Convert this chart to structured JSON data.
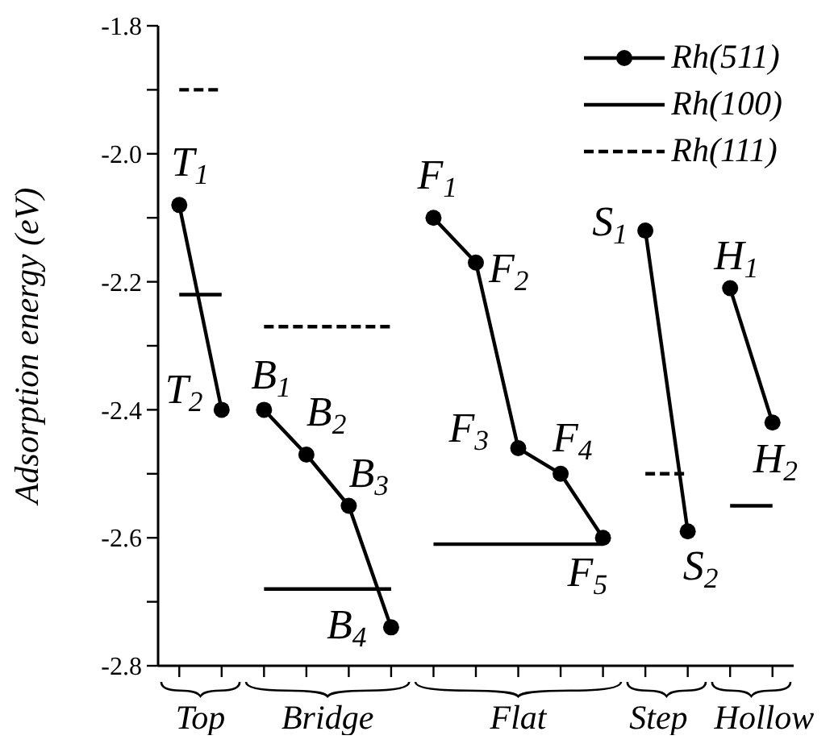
{
  "chart_data": {
    "type": "line",
    "ylabel": "Adsorption energy (eV)",
    "categories": [
      null,
      null,
      null,
      null,
      null,
      null,
      null,
      null,
      null,
      null,
      null,
      null,
      null,
      null,
      null
    ],
    "ylim": [
      -2.8,
      -1.8
    ],
    "yticks": [
      -1.8,
      {
        "value": -1.9,
        "label": null
      },
      {
        "value": -2.0,
        "label": "-2.0"
      },
      {
        "value": -2.1,
        "label": null
      },
      -2.2,
      {
        "value": -2.3,
        "label": null
      },
      -2.4,
      {
        "value": -2.5,
        "label": null
      },
      -2.6,
      {
        "value": -2.7,
        "label": null
      },
      -2.8
    ],
    "grid": false,
    "legend": "top right",
    "series": [
      {
        "name": "Rh(511)",
        "color": "#000000",
        "marker": "circle",
        "line_style": "solid",
        "values": [
          -2.08,
          -2.4,
          null,
          null,
          null,
          null,
          null,
          null,
          null,
          null,
          null,
          null,
          null,
          null,
          null
        ]
      },
      {
        "color": "#000000",
        "marker": "circle",
        "line_style": "solid",
        "values": [
          null,
          null,
          -2.4,
          -2.47,
          -2.55,
          -2.74,
          null,
          null,
          null,
          null,
          null,
          null,
          null,
          null,
          null
        ]
      },
      {
        "color": "#000000",
        "marker": "circle",
        "line_style": "solid",
        "values": [
          null,
          null,
          null,
          null,
          null,
          null,
          -2.1,
          -2.17,
          -2.46,
          -2.5,
          -2.6,
          null,
          null,
          null,
          null
        ]
      },
      {
        "color": "#000000",
        "marker": "circle",
        "line_style": "solid",
        "values": [
          null,
          null,
          null,
          null,
          null,
          null,
          null,
          null,
          null,
          null,
          null,
          -2.12,
          -2.59,
          null,
          null
        ]
      },
      {
        "color": "#000000",
        "marker": "circle",
        "line_style": "solid",
        "values": [
          null,
          null,
          null,
          null,
          null,
          null,
          null,
          null,
          null,
          null,
          null,
          null,
          null,
          -2.21,
          -2.42
        ]
      },
      {
        "name": "Rh(100)",
        "color": "#000000",
        "marker": "none",
        "line_style": "solid",
        "values": [
          -2.22,
          -2.22,
          null,
          null,
          null,
          null,
          null,
          null,
          null,
          null,
          null,
          null,
          null,
          null,
          null
        ]
      },
      {
        "color": "#000000",
        "marker": "none",
        "line_style": "solid",
        "values": [
          null,
          null,
          -2.68,
          -2.68,
          -2.68,
          -2.68,
          null,
          null,
          null,
          null,
          null,
          null,
          null,
          null,
          null
        ]
      },
      {
        "color": "#000000",
        "marker": "none",
        "line_style": "solid",
        "values": [
          null,
          null,
          null,
          null,
          null,
          null,
          -2.61,
          -2.61,
          -2.61,
          -2.61,
          -2.61,
          null,
          null,
          null,
          null
        ]
      },
      {
        "color": "#000000",
        "marker": "none",
        "line_style": "solid",
        "values": [
          null,
          null,
          null,
          null,
          null,
          null,
          null,
          null,
          null,
          null,
          null,
          null,
          null,
          -2.55,
          -2.55
        ]
      },
      {
        "name": "Rh(111)",
        "color": "#000000",
        "marker": "none",
        "line_style": "dashed",
        "values": [
          -1.9,
          -1.9,
          null,
          null,
          null,
          null,
          null,
          null,
          null,
          null,
          null,
          null,
          null,
          null,
          null
        ]
      },
      {
        "color": "#000000",
        "marker": "none",
        "line_style": "dashed",
        "values": [
          null,
          null,
          -2.27,
          -2.27,
          -2.27,
          -2.27,
          null,
          null,
          null,
          null,
          null,
          null,
          null,
          null,
          null
        ]
      },
      {
        "color": "#000000",
        "marker": "none",
        "line_style": "dashed",
        "values": [
          null,
          null,
          null,
          null,
          null,
          null,
          null,
          null,
          null,
          null,
          null,
          -2.5,
          -2.5,
          null,
          null
        ]
      }
    ],
    "annotations": [
      "T$_{1}$",
      "T$_{2}$",
      "B$_{1}$",
      "B$_{2}$",
      "B$_{3}$",
      "B$_{4}$",
      "F$_{1}$",
      "F$_{2}$",
      "F$_{3}$",
      "F$_{4}$",
      "F$_{5}$",
      "S$_{1}$",
      "S$_{2}$",
      "H$_{1}$",
      "H$_{2}$",
      "Top",
      "Bridge",
      "Flat",
      "Step",
      "Hollow"
    ]
  }
}
